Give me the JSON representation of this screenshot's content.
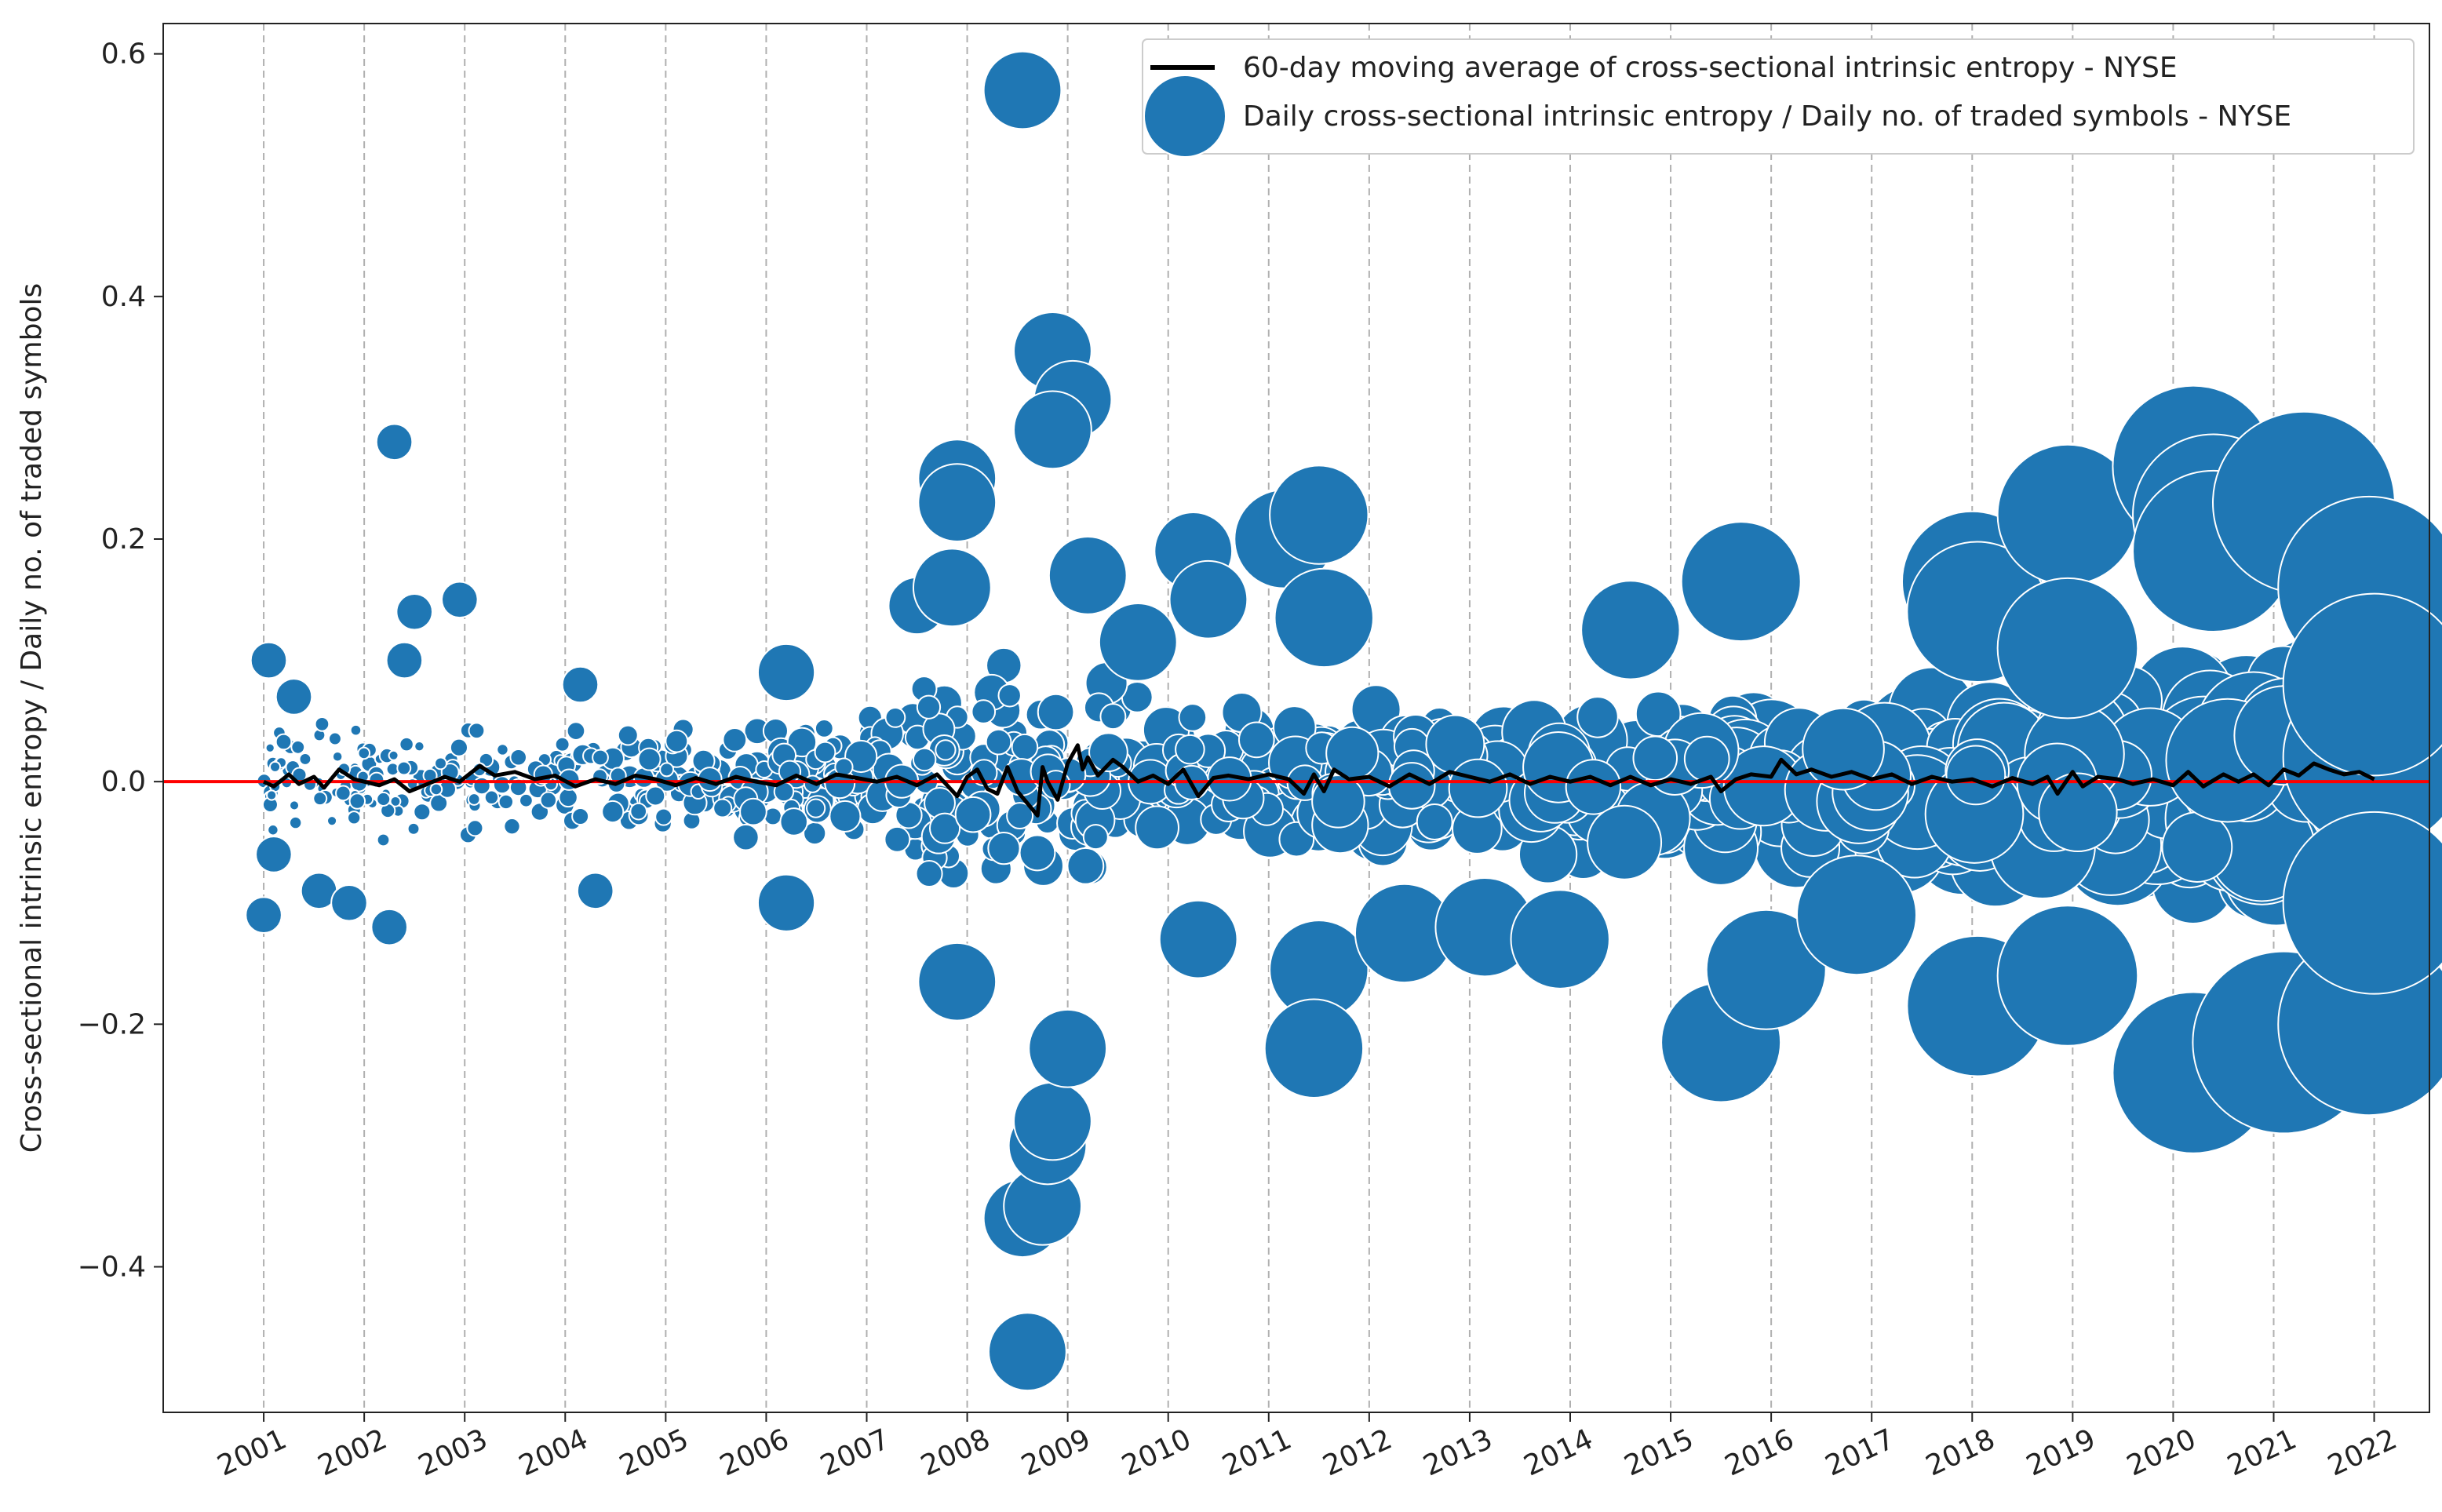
{
  "chart_data": {
    "type": "scatter",
    "title": "",
    "xlabel": "",
    "ylabel": "Cross-sectional intrinsic entropy / Daily no. of traded symbols",
    "xlim": [
      2000.0,
      2022.55
    ],
    "ylim": [
      -0.52,
      0.625
    ],
    "x_ticks": [
      2001,
      2002,
      2003,
      2004,
      2005,
      2006,
      2007,
      2008,
      2009,
      2010,
      2011,
      2012,
      2013,
      2014,
      2015,
      2016,
      2017,
      2018,
      2019,
      2020,
      2021,
      2022
    ],
    "x_tick_labels": [
      "2001",
      "2002",
      "2003",
      "2004",
      "2005",
      "2006",
      "2007",
      "2008",
      "2009",
      "2010",
      "2011",
      "2012",
      "2013",
      "2014",
      "2015",
      "2016",
      "2017",
      "2018",
      "2019",
      "2020",
      "2021",
      "2022"
    ],
    "y_ticks": [
      0.6,
      0.4,
      0.2,
      0.0,
      -0.2,
      -0.4
    ],
    "y_tick_labels": [
      "0.6",
      "0.4",
      "0.2",
      "0.0",
      "−0.2",
      "−0.4"
    ],
    "grid": "x-dashed",
    "reference_line": {
      "y": 0.0,
      "color": "#ff0000"
    },
    "legend_position": "top-right",
    "colors": {
      "scatter": "#1f77b4",
      "moving_average": "#000000",
      "zero_line": "#ff0000"
    },
    "series": [
      {
        "name": "60-day moving average of cross-sectional intrinsic entropy - NYSE",
        "kind": "line",
        "points": [
          [
            2001.0,
            0.0
          ],
          [
            2001.1,
            -0.004
          ],
          [
            2001.25,
            0.006
          ],
          [
            2001.35,
            -0.002
          ],
          [
            2001.5,
            0.004
          ],
          [
            2001.6,
            -0.005
          ],
          [
            2001.75,
            0.01
          ],
          [
            2001.9,
            0.002
          ],
          [
            2002.0,
            0.0
          ],
          [
            2002.15,
            -0.003
          ],
          [
            2002.3,
            0.002
          ],
          [
            2002.45,
            -0.008
          ],
          [
            2002.6,
            -0.003
          ],
          [
            2002.8,
            0.004
          ],
          [
            2002.95,
            0.0
          ],
          [
            2003.15,
            0.013
          ],
          [
            2003.3,
            0.005
          ],
          [
            2003.5,
            0.008
          ],
          [
            2003.7,
            0.002
          ],
          [
            2003.9,
            0.005
          ],
          [
            2004.1,
            -0.004
          ],
          [
            2004.3,
            0.002
          ],
          [
            2004.5,
            -0.002
          ],
          [
            2004.7,
            0.005
          ],
          [
            2004.9,
            0.002
          ],
          [
            2005.1,
            -0.003
          ],
          [
            2005.3,
            0.003
          ],
          [
            2005.5,
            -0.002
          ],
          [
            2005.7,
            0.004
          ],
          [
            2005.9,
            0.0
          ],
          [
            2006.1,
            -0.003
          ],
          [
            2006.3,
            0.005
          ],
          [
            2006.5,
            -0.002
          ],
          [
            2006.7,
            0.006
          ],
          [
            2006.9,
            0.003
          ],
          [
            2007.1,
            0.0
          ],
          [
            2007.3,
            0.004
          ],
          [
            2007.5,
            -0.003
          ],
          [
            2007.7,
            0.006
          ],
          [
            2007.9,
            -0.012
          ],
          [
            2008.0,
            0.004
          ],
          [
            2008.1,
            0.01
          ],
          [
            2008.2,
            -0.006
          ],
          [
            2008.3,
            -0.01
          ],
          [
            2008.4,
            0.012
          ],
          [
            2008.5,
            -0.008
          ],
          [
            2008.6,
            -0.018
          ],
          [
            2008.7,
            -0.028
          ],
          [
            2008.75,
            0.012
          ],
          [
            2008.8,
            0.0
          ],
          [
            2008.9,
            -0.015
          ],
          [
            2009.0,
            0.015
          ],
          [
            2009.1,
            0.03
          ],
          [
            2009.15,
            0.01
          ],
          [
            2009.2,
            0.02
          ],
          [
            2009.3,
            0.005
          ],
          [
            2009.45,
            0.018
          ],
          [
            2009.55,
            0.012
          ],
          [
            2009.7,
            0.0
          ],
          [
            2009.85,
            0.005
          ],
          [
            2010.0,
            -0.002
          ],
          [
            2010.15,
            0.01
          ],
          [
            2010.3,
            -0.012
          ],
          [
            2010.45,
            0.003
          ],
          [
            2010.6,
            0.005
          ],
          [
            2010.8,
            0.002
          ],
          [
            2011.0,
            0.006
          ],
          [
            2011.2,
            0.002
          ],
          [
            2011.35,
            -0.01
          ],
          [
            2011.45,
            0.006
          ],
          [
            2011.55,
            -0.008
          ],
          [
            2011.65,
            0.01
          ],
          [
            2011.8,
            0.002
          ],
          [
            2012.0,
            0.004
          ],
          [
            2012.2,
            -0.004
          ],
          [
            2012.4,
            0.006
          ],
          [
            2012.6,
            -0.002
          ],
          [
            2012.8,
            0.008
          ],
          [
            2013.0,
            0.004
          ],
          [
            2013.2,
            0.0
          ],
          [
            2013.4,
            0.006
          ],
          [
            2013.6,
            -0.002
          ],
          [
            2013.8,
            0.004
          ],
          [
            2014.0,
            0.0
          ],
          [
            2014.2,
            0.004
          ],
          [
            2014.4,
            -0.003
          ],
          [
            2014.6,
            0.004
          ],
          [
            2014.8,
            -0.003
          ],
          [
            2015.0,
            0.002
          ],
          [
            2015.2,
            -0.002
          ],
          [
            2015.4,
            0.004
          ],
          [
            2015.5,
            -0.008
          ],
          [
            2015.65,
            0.002
          ],
          [
            2015.8,
            0.006
          ],
          [
            2016.0,
            0.004
          ],
          [
            2016.1,
            0.018
          ],
          [
            2016.25,
            0.006
          ],
          [
            2016.4,
            0.01
          ],
          [
            2016.6,
            0.004
          ],
          [
            2016.8,
            0.008
          ],
          [
            2017.0,
            0.002
          ],
          [
            2017.2,
            0.006
          ],
          [
            2017.4,
            -0.002
          ],
          [
            2017.6,
            0.004
          ],
          [
            2017.8,
            0.0
          ],
          [
            2018.0,
            0.002
          ],
          [
            2018.2,
            -0.004
          ],
          [
            2018.4,
            0.003
          ],
          [
            2018.6,
            -0.002
          ],
          [
            2018.75,
            0.004
          ],
          [
            2018.85,
            -0.01
          ],
          [
            2019.0,
            0.008
          ],
          [
            2019.1,
            -0.004
          ],
          [
            2019.25,
            0.004
          ],
          [
            2019.45,
            0.002
          ],
          [
            2019.6,
            -0.002
          ],
          [
            2019.8,
            0.002
          ],
          [
            2020.0,
            -0.003
          ],
          [
            2020.15,
            0.008
          ],
          [
            2020.3,
            -0.004
          ],
          [
            2020.5,
            0.006
          ],
          [
            2020.65,
            0.0
          ],
          [
            2020.8,
            0.006
          ],
          [
            2020.95,
            -0.003
          ],
          [
            2021.1,
            0.01
          ],
          [
            2021.25,
            0.005
          ],
          [
            2021.4,
            0.015
          ],
          [
            2021.55,
            0.01
          ],
          [
            2021.7,
            0.006
          ],
          [
            2021.85,
            0.008
          ],
          [
            2022.0,
            0.002
          ]
        ]
      },
      {
        "name": "Daily cross-sectional intrinsic entropy / Daily no. of traded symbols - NYSE",
        "kind": "bubble",
        "points": [
          [
            2001.0,
            -0.11,
            1
          ],
          [
            2001.05,
            0.1,
            1
          ],
          [
            2001.1,
            -0.06,
            1
          ],
          [
            2001.3,
            0.07,
            1
          ],
          [
            2001.55,
            -0.09,
            1
          ],
          [
            2001.85,
            -0.1,
            1
          ],
          [
            2002.3,
            0.28,
            1
          ],
          [
            2002.25,
            -0.12,
            1
          ],
          [
            2002.5,
            0.14,
            1
          ],
          [
            2002.95,
            0.15,
            1
          ],
          [
            2002.4,
            0.1,
            1
          ],
          [
            2004.15,
            0.08,
            1
          ],
          [
            2004.3,
            -0.09,
            1
          ],
          [
            2006.2,
            0.09,
            2
          ],
          [
            2006.2,
            -0.1,
            2
          ],
          [
            2007.5,
            0.145,
            2
          ],
          [
            2007.9,
            0.25,
            3
          ],
          [
            2007.9,
            0.23,
            3
          ],
          [
            2007.85,
            0.16,
            3
          ],
          [
            2007.9,
            -0.165,
            3
          ],
          [
            2008.55,
            0.57,
            3
          ],
          [
            2008.85,
            0.355,
            3
          ],
          [
            2009.05,
            0.315,
            3
          ],
          [
            2008.85,
            0.29,
            3
          ],
          [
            2008.55,
            -0.36,
            3
          ],
          [
            2008.75,
            -0.35,
            3
          ],
          [
            2008.8,
            -0.3,
            3
          ],
          [
            2008.6,
            -0.47,
            3
          ],
          [
            2008.85,
            -0.28,
            3
          ],
          [
            2009.0,
            -0.22,
            3
          ],
          [
            2009.2,
            0.17,
            3
          ],
          [
            2009.7,
            0.115,
            3
          ],
          [
            2010.25,
            0.19,
            3
          ],
          [
            2010.4,
            0.15,
            3
          ],
          [
            2010.3,
            -0.13,
            3
          ],
          [
            2011.15,
            0.2,
            4
          ],
          [
            2011.5,
            0.22,
            4
          ],
          [
            2011.5,
            -0.155,
            4
          ],
          [
            2011.45,
            -0.22,
            4
          ],
          [
            2011.55,
            0.135,
            4
          ],
          [
            2012.35,
            -0.125,
            4
          ],
          [
            2013.15,
            -0.12,
            4
          ],
          [
            2013.9,
            -0.13,
            4
          ],
          [
            2014.6,
            0.125,
            4
          ],
          [
            2015.5,
            -0.215,
            5
          ],
          [
            2015.7,
            0.165,
            5
          ],
          [
            2015.95,
            -0.155,
            5
          ],
          [
            2016.85,
            -0.11,
            5
          ],
          [
            2018.0,
            0.165,
            6
          ],
          [
            2018.05,
            -0.185,
            6
          ],
          [
            2018.05,
            0.14,
            6
          ],
          [
            2018.95,
            0.22,
            6
          ],
          [
            2018.95,
            -0.16,
            6
          ],
          [
            2018.95,
            0.11,
            6
          ],
          [
            2020.2,
            0.26,
            7
          ],
          [
            2020.2,
            -0.24,
            7
          ],
          [
            2020.4,
            0.22,
            7
          ],
          [
            2020.4,
            0.19,
            7
          ],
          [
            2021.3,
            0.23,
            8
          ],
          [
            2021.1,
            -0.215,
            8
          ],
          [
            2021.95,
            0.16,
            8
          ],
          [
            2021.95,
            -0.2,
            8
          ],
          [
            2022.0,
            0.02,
            8
          ],
          [
            2022.0,
            -0.1,
            8
          ],
          [
            2022.0,
            0.08,
            8
          ]
        ]
      }
    ]
  }
}
